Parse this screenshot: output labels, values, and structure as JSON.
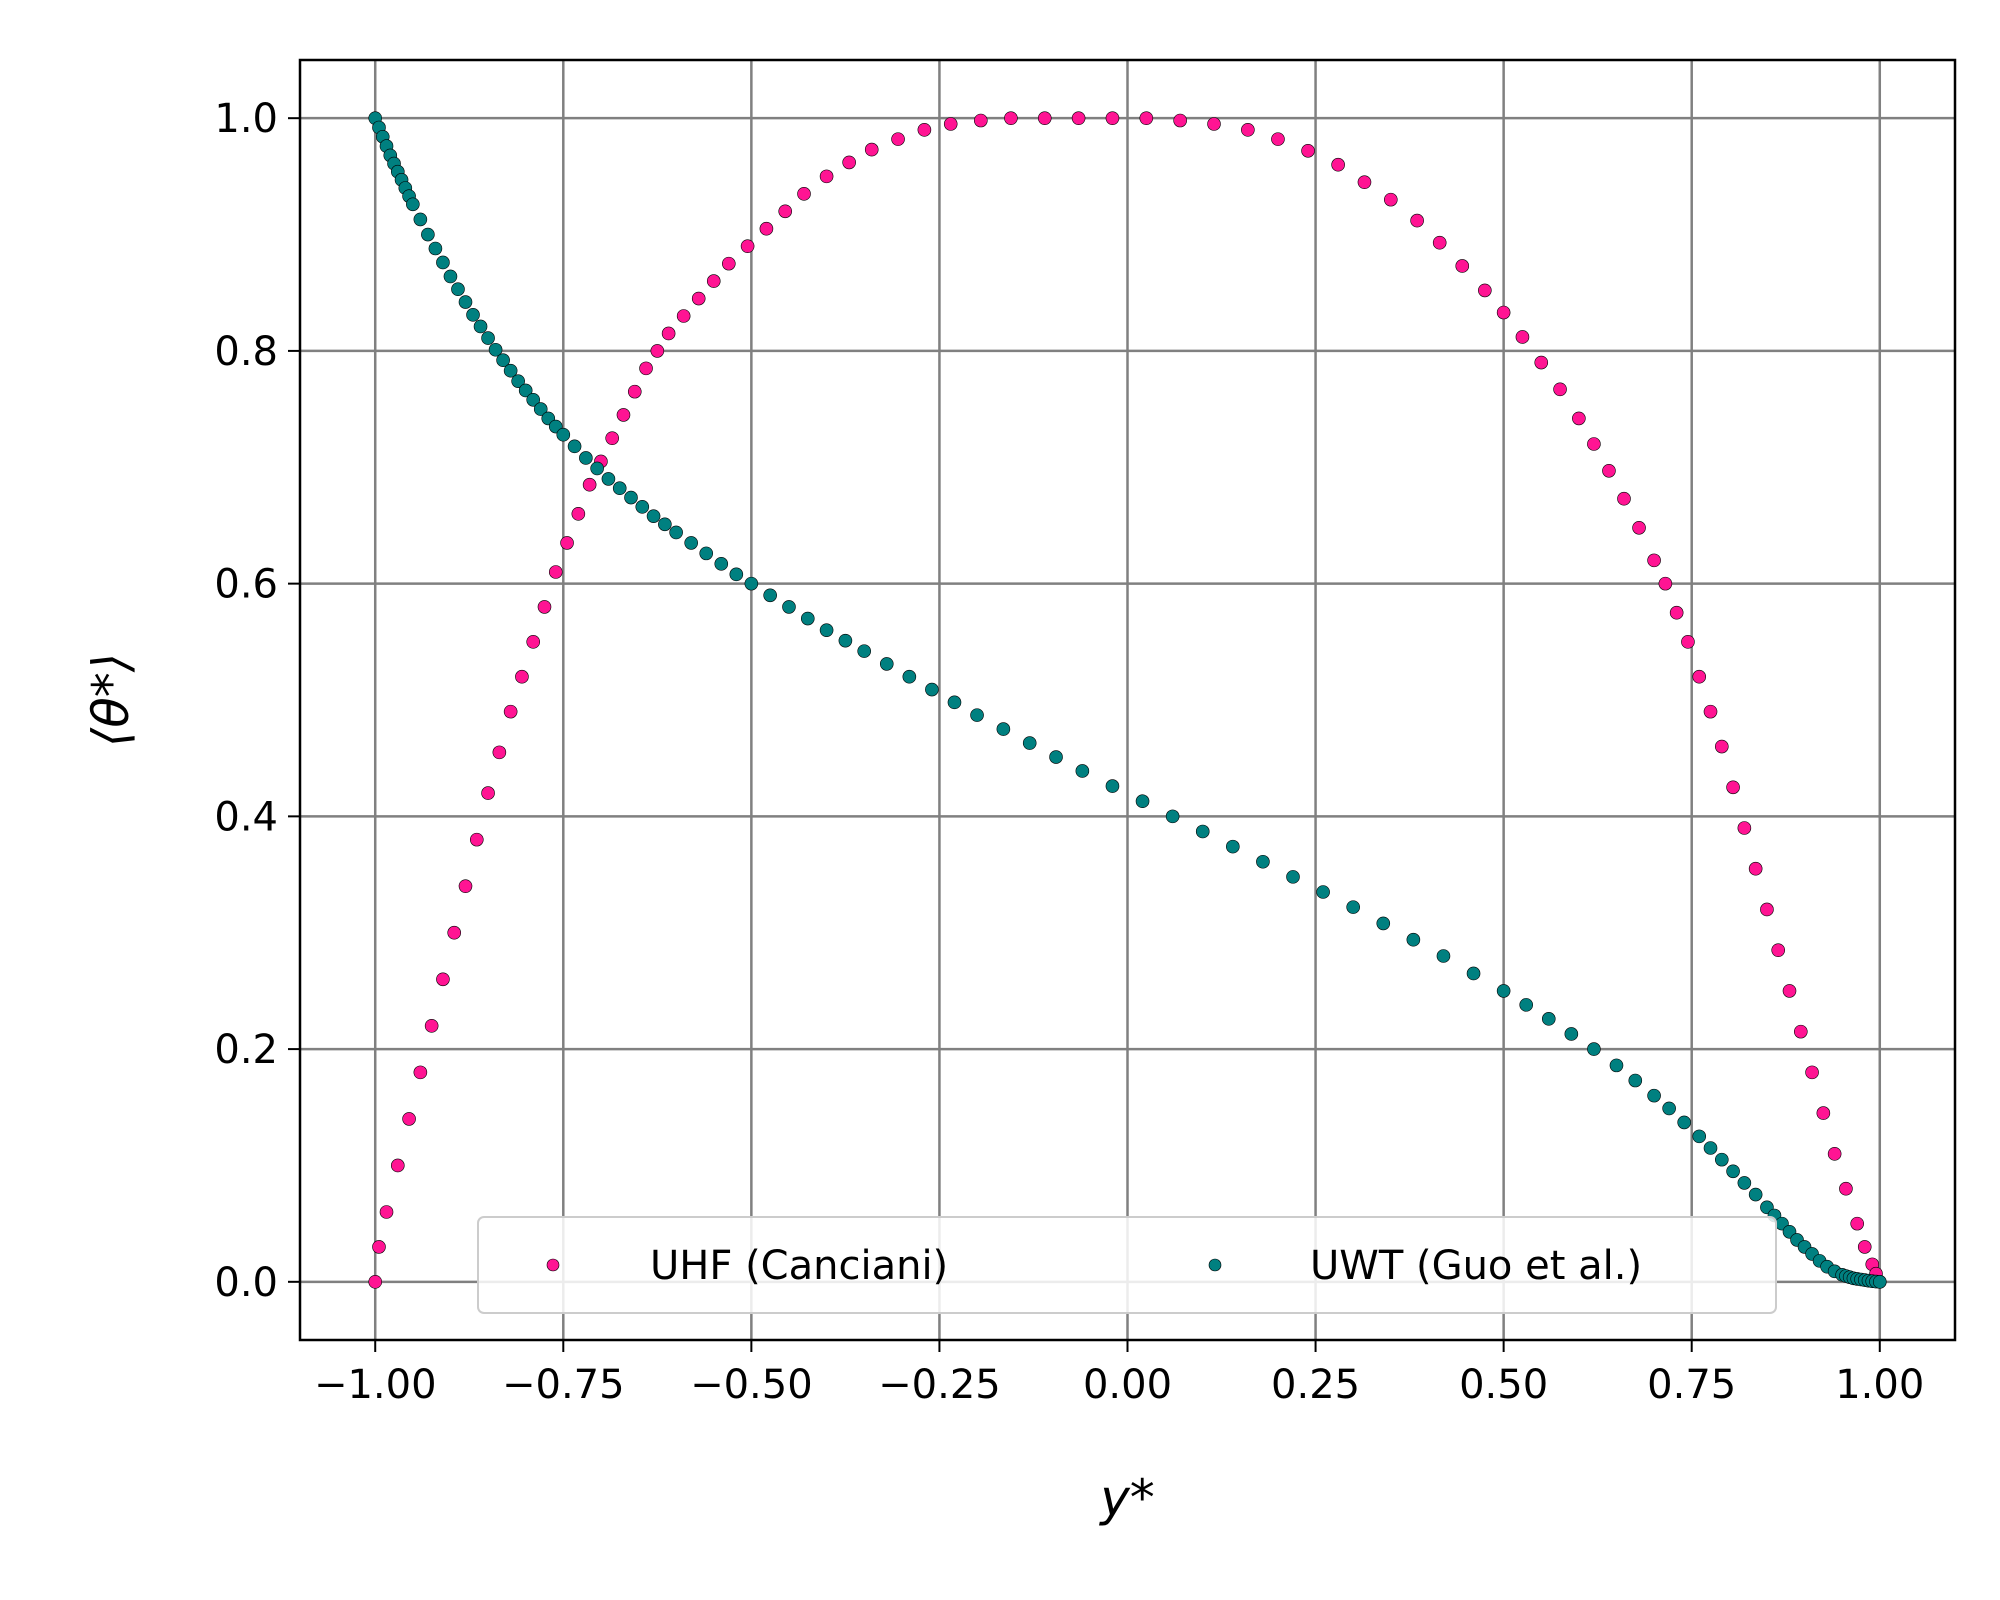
{
  "chart_data": {
    "type": "scatter",
    "title": "",
    "xlabel": "y*",
    "ylabel": "⟨θ*⟩",
    "xlim": [
      -1.1,
      1.1
    ],
    "ylim": [
      -0.05,
      1.05
    ],
    "xticks": [
      -1.0,
      -0.75,
      -0.5,
      -0.25,
      0.0,
      0.25,
      0.5,
      0.75,
      1.0
    ],
    "xtick_labels": [
      "−1.00",
      "−0.75",
      "−0.50",
      "−0.25",
      "0.00",
      "0.25",
      "0.50",
      "0.75",
      "1.00"
    ],
    "yticks": [
      0.0,
      0.2,
      0.4,
      0.6,
      0.8,
      1.0
    ],
    "ytick_labels": [
      "0.0",
      "0.2",
      "0.4",
      "0.6",
      "0.8",
      "1.0"
    ],
    "grid": true,
    "legend_position": "lower-center",
    "series": [
      {
        "name": "UHF (Canciani)",
        "color": "#ff1493",
        "x": [
          -1.0,
          -0.995,
          -0.985,
          -0.97,
          -0.955,
          -0.94,
          -0.925,
          -0.91,
          -0.895,
          -0.88,
          -0.865,
          -0.85,
          -0.835,
          -0.82,
          -0.805,
          -0.79,
          -0.775,
          -0.76,
          -0.745,
          -0.73,
          -0.715,
          -0.7,
          -0.685,
          -0.67,
          -0.655,
          -0.64,
          -0.625,
          -0.61,
          -0.59,
          -0.57,
          -0.55,
          -0.53,
          -0.505,
          -0.48,
          -0.455,
          -0.43,
          -0.4,
          -0.37,
          -0.34,
          -0.305,
          -0.27,
          -0.235,
          -0.195,
          -0.155,
          -0.11,
          -0.065,
          -0.02,
          0.025,
          0.07,
          0.115,
          0.16,
          0.2,
          0.24,
          0.28,
          0.315,
          0.35,
          0.385,
          0.415,
          0.445,
          0.475,
          0.5,
          0.525,
          0.55,
          0.575,
          0.6,
          0.62,
          0.64,
          0.66,
          0.68,
          0.7,
          0.715,
          0.73,
          0.745,
          0.76,
          0.775,
          0.79,
          0.805,
          0.82,
          0.835,
          0.85,
          0.865,
          0.88,
          0.895,
          0.91,
          0.925,
          0.94,
          0.955,
          0.97,
          0.98,
          0.99,
          0.995,
          1.0
        ],
        "y": [
          0.0,
          0.03,
          0.06,
          0.1,
          0.14,
          0.18,
          0.22,
          0.26,
          0.3,
          0.34,
          0.38,
          0.42,
          0.455,
          0.49,
          0.52,
          0.55,
          0.58,
          0.61,
          0.635,
          0.66,
          0.685,
          0.705,
          0.725,
          0.745,
          0.765,
          0.785,
          0.8,
          0.815,
          0.83,
          0.845,
          0.86,
          0.875,
          0.89,
          0.905,
          0.92,
          0.935,
          0.95,
          0.962,
          0.973,
          0.982,
          0.99,
          0.995,
          0.998,
          1.0,
          1.0,
          1.0,
          1.0,
          1.0,
          0.998,
          0.995,
          0.99,
          0.982,
          0.972,
          0.96,
          0.945,
          0.93,
          0.912,
          0.893,
          0.873,
          0.852,
          0.833,
          0.812,
          0.79,
          0.767,
          0.742,
          0.72,
          0.697,
          0.673,
          0.648,
          0.62,
          0.6,
          0.575,
          0.55,
          0.52,
          0.49,
          0.46,
          0.425,
          0.39,
          0.355,
          0.32,
          0.285,
          0.25,
          0.215,
          0.18,
          0.145,
          0.11,
          0.08,
          0.05,
          0.03,
          0.015,
          0.007,
          0.0
        ]
      },
      {
        "name": "UWT (Guo et al.)",
        "color": "#008080",
        "x": [
          -1.0,
          -0.995,
          -0.99,
          -0.985,
          -0.98,
          -0.975,
          -0.97,
          -0.965,
          -0.96,
          -0.955,
          -0.95,
          -0.94,
          -0.93,
          -0.92,
          -0.91,
          -0.9,
          -0.89,
          -0.88,
          -0.87,
          -0.86,
          -0.85,
          -0.84,
          -0.83,
          -0.82,
          -0.81,
          -0.8,
          -0.79,
          -0.78,
          -0.77,
          -0.76,
          -0.75,
          -0.735,
          -0.72,
          -0.705,
          -0.69,
          -0.675,
          -0.66,
          -0.645,
          -0.63,
          -0.615,
          -0.6,
          -0.58,
          -0.56,
          -0.54,
          -0.52,
          -0.5,
          -0.475,
          -0.45,
          -0.425,
          -0.4,
          -0.375,
          -0.35,
          -0.32,
          -0.29,
          -0.26,
          -0.23,
          -0.2,
          -0.165,
          -0.13,
          -0.095,
          -0.06,
          -0.02,
          0.02,
          0.06,
          0.1,
          0.14,
          0.18,
          0.22,
          0.26,
          0.3,
          0.34,
          0.38,
          0.42,
          0.46,
          0.5,
          0.53,
          0.56,
          0.59,
          0.62,
          0.65,
          0.675,
          0.7,
          0.72,
          0.74,
          0.76,
          0.775,
          0.79,
          0.805,
          0.82,
          0.835,
          0.85,
          0.86,
          0.87,
          0.88,
          0.89,
          0.9,
          0.91,
          0.92,
          0.93,
          0.94,
          0.95,
          0.955,
          0.96,
          0.965,
          0.97,
          0.975,
          0.98,
          0.985,
          0.99,
          0.995,
          1.0
        ],
        "y": [
          1.0,
          0.992,
          0.984,
          0.976,
          0.968,
          0.961,
          0.954,
          0.947,
          0.94,
          0.933,
          0.926,
          0.913,
          0.9,
          0.888,
          0.876,
          0.864,
          0.853,
          0.842,
          0.831,
          0.821,
          0.811,
          0.801,
          0.792,
          0.783,
          0.774,
          0.766,
          0.758,
          0.75,
          0.742,
          0.735,
          0.728,
          0.718,
          0.708,
          0.699,
          0.69,
          0.682,
          0.674,
          0.666,
          0.658,
          0.651,
          0.644,
          0.635,
          0.626,
          0.617,
          0.608,
          0.6,
          0.59,
          0.58,
          0.57,
          0.56,
          0.551,
          0.542,
          0.531,
          0.52,
          0.509,
          0.498,
          0.487,
          0.475,
          0.463,
          0.451,
          0.439,
          0.426,
          0.413,
          0.4,
          0.387,
          0.374,
          0.361,
          0.348,
          0.335,
          0.322,
          0.308,
          0.294,
          0.28,
          0.265,
          0.25,
          0.238,
          0.226,
          0.213,
          0.2,
          0.186,
          0.173,
          0.16,
          0.149,
          0.137,
          0.125,
          0.115,
          0.105,
          0.095,
          0.085,
          0.075,
          0.064,
          0.057,
          0.05,
          0.043,
          0.036,
          0.03,
          0.024,
          0.018,
          0.013,
          0.009,
          0.006,
          0.005,
          0.004,
          0.003,
          0.0025,
          0.002,
          0.0015,
          0.001,
          0.0005,
          0.0002,
          0.0
        ]
      }
    ]
  }
}
